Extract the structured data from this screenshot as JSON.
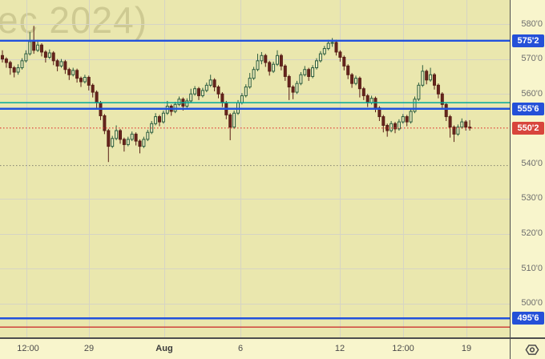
{
  "watermark": {
    "text": "ec 2024)"
  },
  "colors": {
    "chart_bg": "#eae7ae",
    "axis_bg": "#f8f5cc",
    "grid": "#d6d4c4",
    "axis_border": "#4d4d4d",
    "tick_text": "#6e6e6e",
    "time_text": "#4a4a4a",
    "blue_line": "#2152dd",
    "blue_badge": "#2450d8",
    "teal_line": "#00a89a",
    "red_badge": "#d8453c",
    "red_dotted": "#e0453c",
    "red_solid": "#cc3430",
    "olive_dotted": "#8f8d76",
    "up_border": "#2b5c3e",
    "up_fill": "#efecbd",
    "down_border": "#581f17",
    "down_fill": "#67251d"
  },
  "chart_data": {
    "type": "candlestick",
    "price_format": "futures eighths (e.g. 575'2 = 575.25)",
    "y_range": [
      490.3,
      586.9
    ],
    "grid": {
      "h_prices": [
        580,
        570,
        560,
        530,
        520,
        510,
        500
      ],
      "v_x": [
        33,
        111,
        205,
        300,
        424,
        503,
        582
      ]
    },
    "y_axis": {
      "ticks": [
        {
          "label": "580'0",
          "price": 580
        },
        {
          "label": "570'0",
          "price": 570
        },
        {
          "label": "560'0",
          "price": 560
        },
        {
          "label": "540'0",
          "price": 540
        },
        {
          "label": "530'0",
          "price": 530
        },
        {
          "label": "520'0",
          "price": 520
        },
        {
          "label": "510'0",
          "price": 510
        },
        {
          "label": "500'0",
          "price": 500
        }
      ],
      "badges": [
        {
          "label": "575'2",
          "price": 575.25,
          "kind": "blue"
        },
        {
          "label": "555'6",
          "price": 555.75,
          "kind": "blue"
        },
        {
          "label": "550'2",
          "price": 550.25,
          "kind": "red"
        },
        {
          "label": "495'6",
          "price": 495.75,
          "kind": "blue"
        }
      ]
    },
    "x_axis": {
      "labels": [
        {
          "text": "12:00",
          "x": 35,
          "bold": false
        },
        {
          "text": "29",
          "x": 111,
          "bold": false
        },
        {
          "text": "Aug",
          "x": 205,
          "bold": true
        },
        {
          "text": "6",
          "x": 300,
          "bold": false
        },
        {
          "text": "12",
          "x": 424,
          "bold": false
        },
        {
          "text": "12:00",
          "x": 503,
          "bold": false
        },
        {
          "text": "19",
          "x": 582,
          "bold": false
        }
      ]
    },
    "h_lines": [
      {
        "name": "alert-line-575-2",
        "price": 575.25,
        "style": "solid",
        "color": "#2152dd",
        "width": 2.4
      },
      {
        "name": "teal-line",
        "price": 557.5,
        "style": "solid",
        "color": "#00a89a",
        "width": 1.6
      },
      {
        "name": "alert-line-555-6",
        "price": 555.75,
        "style": "solid",
        "color": "#2152dd",
        "width": 2.4
      },
      {
        "name": "last-price-line",
        "price": 550.25,
        "style": "dotted",
        "color": "#e0453c",
        "width": 1.2
      },
      {
        "name": "olive-dotted-line",
        "price": 539.5,
        "style": "dotted",
        "color": "#8f8d76",
        "width": 1.2
      },
      {
        "name": "alert-line-495-6",
        "price": 495.75,
        "style": "solid",
        "color": "#2152dd",
        "width": 2.4
      },
      {
        "name": "red-line-493",
        "price": 493.25,
        "style": "solid",
        "color": "#cc3430",
        "width": 1.4
      }
    ],
    "last_price": "550'2",
    "candles": [
      [
        571,
        572.5,
        569,
        570
      ],
      [
        570,
        570.5,
        567.5,
        569
      ],
      [
        569,
        569.5,
        565.5,
        567.5
      ],
      [
        567.5,
        568,
        564.75,
        566.25
      ],
      [
        566.25,
        568.5,
        565.5,
        567.5
      ],
      [
        567.5,
        570.25,
        567,
        569.5
      ],
      [
        569.5,
        572.5,
        569,
        571.5
      ],
      [
        571.5,
        577.75,
        571,
        575
      ],
      [
        575,
        579.5,
        571.5,
        572.5
      ],
      [
        572.5,
        575.5,
        572,
        574
      ],
      [
        574,
        574.5,
        570.75,
        572
      ],
      [
        572,
        572.5,
        569,
        570.5
      ],
      [
        570.5,
        572.75,
        570,
        571.75
      ],
      [
        571.75,
        572.25,
        568.25,
        569.5
      ],
      [
        569.5,
        570,
        566.5,
        568
      ],
      [
        568,
        570,
        567.5,
        569.25
      ],
      [
        569.25,
        569.75,
        565.75,
        567
      ],
      [
        567,
        567.5,
        564,
        565.5
      ],
      [
        565.5,
        567.5,
        565,
        566.75
      ],
      [
        566.75,
        567.25,
        563.25,
        564.5
      ],
      [
        564.5,
        565,
        562,
        563.5
      ],
      [
        563.5,
        565.5,
        563,
        564.75
      ],
      [
        564.75,
        565.25,
        561,
        562.5
      ],
      [
        562.5,
        563,
        559,
        560.5
      ],
      [
        560.5,
        561,
        556,
        557.5
      ],
      [
        557.5,
        558,
        552.5,
        553.75
      ],
      [
        553.75,
        554.25,
        548.5,
        549.5
      ],
      [
        549.5,
        550,
        540.5,
        545
      ],
      [
        545,
        548,
        544.5,
        547.25
      ],
      [
        547.25,
        551,
        546.75,
        549.5
      ],
      [
        549.5,
        550,
        545.75,
        547
      ],
      [
        547,
        547.5,
        543.5,
        545.5
      ],
      [
        545.5,
        547.75,
        545,
        547
      ],
      [
        547,
        549.25,
        546.5,
        548.5
      ],
      [
        548.5,
        549,
        545.25,
        546.5
      ],
      [
        546.5,
        547,
        543,
        545
      ],
      [
        545,
        547.75,
        544.5,
        547
      ],
      [
        547,
        549.75,
        546.5,
        549
      ],
      [
        549,
        552.25,
        548.5,
        551.5
      ],
      [
        551.5,
        554.5,
        551,
        553.5
      ],
      [
        553.5,
        554,
        550.75,
        552
      ],
      [
        552,
        555.25,
        551.5,
        554.5
      ],
      [
        554.5,
        558,
        554,
        556.5
      ],
      [
        556.5,
        557,
        553.75,
        555
      ],
      [
        555,
        557.75,
        554.5,
        557
      ],
      [
        557,
        559.25,
        556.5,
        558.5
      ],
      [
        558.5,
        559,
        555.25,
        556.5
      ],
      [
        556.5,
        558.75,
        556,
        558
      ],
      [
        558,
        561.5,
        557.5,
        560
      ],
      [
        560,
        562.25,
        559.5,
        561.5
      ],
      [
        561.5,
        562,
        558.25,
        559.5
      ],
      [
        559.5,
        561.75,
        559,
        561
      ],
      [
        561,
        563.25,
        560.5,
        562.5
      ],
      [
        562.5,
        565.5,
        562,
        564
      ],
      [
        564,
        564.5,
        560.75,
        562
      ],
      [
        562,
        562.5,
        558.75,
        560
      ],
      [
        560,
        560.5,
        556.25,
        557.5
      ],
      [
        557.5,
        558,
        552.75,
        554
      ],
      [
        554,
        554.5,
        546.75,
        550.5
      ],
      [
        550.5,
        555.25,
        550,
        554.5
      ],
      [
        554.5,
        558.25,
        554,
        557.5
      ],
      [
        557.5,
        560.25,
        557,
        559.5
      ],
      [
        559.5,
        562.75,
        559,
        562
      ],
      [
        562,
        566,
        561.5,
        564.5
      ],
      [
        564.5,
        567.75,
        564,
        567
      ],
      [
        567,
        571.5,
        566.5,
        569.5
      ],
      [
        569.5,
        572,
        568.5,
        571
      ],
      [
        571,
        571.5,
        567.75,
        569
      ],
      [
        569,
        569.5,
        565.25,
        566.5
      ],
      [
        566.5,
        569.25,
        566,
        568.5
      ],
      [
        568.5,
        572.5,
        568,
        571
      ],
      [
        571,
        571.5,
        566.75,
        568
      ],
      [
        568,
        568.5,
        563.75,
        565
      ],
      [
        565,
        565.5,
        558.25,
        562
      ],
      [
        562,
        562.5,
        558.5,
        560.5
      ],
      [
        560.5,
        563.75,
        560,
        563
      ],
      [
        563,
        566.25,
        562.5,
        565.5
      ],
      [
        565.5,
        568,
        565,
        567
      ],
      [
        567,
        567.5,
        563.75,
        565
      ],
      [
        565,
        568.25,
        564.5,
        567.5
      ],
      [
        567.5,
        570.25,
        567,
        569.5
      ],
      [
        569.5,
        572.25,
        569,
        571.5
      ],
      [
        571.5,
        573.75,
        571,
        573
      ],
      [
        573,
        575.5,
        572.5,
        574.5
      ],
      [
        574.5,
        576,
        573.5,
        574.75
      ],
      [
        574.75,
        575.5,
        571,
        572
      ],
      [
        572,
        572.5,
        569.25,
        570.5
      ],
      [
        570.5,
        571,
        566.75,
        568
      ],
      [
        568,
        568.5,
        564.25,
        565.5
      ],
      [
        565.5,
        566,
        561.75,
        563
      ],
      [
        563,
        565.25,
        562.5,
        564.5
      ],
      [
        564.5,
        565,
        559,
        561.5
      ],
      [
        561.5,
        562,
        558.25,
        559.5
      ],
      [
        559.5,
        560,
        556.25,
        557.5
      ],
      [
        557.5,
        559.5,
        557,
        558.75
      ],
      [
        558.75,
        559.25,
        554.75,
        556
      ],
      [
        556,
        556.5,
        552.25,
        553.5
      ],
      [
        553.5,
        554,
        549,
        551
      ],
      [
        551,
        551.5,
        547.75,
        549.5
      ],
      [
        549.5,
        552.25,
        549,
        551.5
      ],
      [
        551.5,
        552,
        548.75,
        550
      ],
      [
        550,
        552.75,
        549.5,
        552
      ],
      [
        552,
        554.25,
        551.5,
        553.5
      ],
      [
        553.5,
        554,
        550.75,
        552
      ],
      [
        552,
        555.75,
        551.5,
        555
      ],
      [
        555,
        559.25,
        554.5,
        558.5
      ],
      [
        558.5,
        563.25,
        558,
        562.5
      ],
      [
        562.5,
        568.25,
        562,
        566.5
      ],
      [
        566.5,
        567,
        562.75,
        564
      ],
      [
        564,
        567.5,
        563.5,
        565.5
      ],
      [
        565.5,
        566,
        561.25,
        562.5
      ],
      [
        562.5,
        563,
        558.75,
        560
      ],
      [
        560,
        560.5,
        555.75,
        557
      ],
      [
        557,
        557.5,
        552.25,
        553.5
      ],
      [
        553.5,
        554,
        547.5,
        550.5
      ],
      [
        550.5,
        551,
        546.25,
        548.5
      ],
      [
        548.5,
        551.25,
        548,
        550.5
      ],
      [
        550.5,
        553,
        550,
        552
      ],
      [
        552,
        552.5,
        549.5,
        550.5
      ],
      [
        550.5,
        552.5,
        549.5,
        550.25
      ]
    ]
  }
}
